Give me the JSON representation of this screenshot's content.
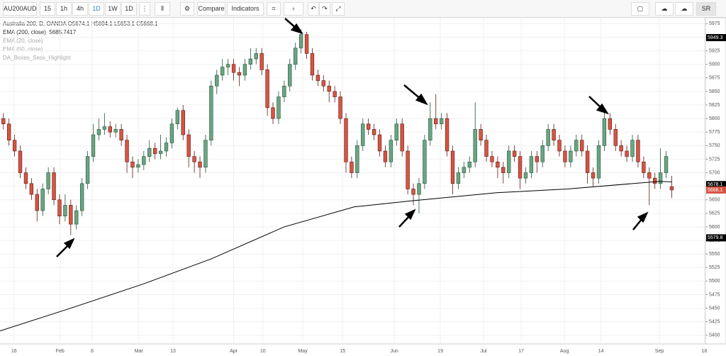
{
  "toolbar": {
    "symbol": "AU200AUD",
    "intervals": [
      "15",
      "1h",
      "4h",
      "1D",
      "1W",
      "1D"
    ],
    "compare": "Compare",
    "indicators": "Indicators",
    "user": "SR"
  },
  "legend": {
    "title": "Australia 200, D, OANDA",
    "ohlc": [
      "O5674.1",
      "H5694.1",
      "L5653.1",
      "C5668.1"
    ],
    "studies": [
      {
        "name": "EMA (200, close)",
        "value": "5685.7417"
      },
      {
        "name": "EMA (20, close)"
      },
      {
        "name": "EMA (50, close)"
      },
      {
        "name": "DA_Boxes_Sess_Highlight"
      }
    ]
  },
  "chart_data": {
    "type": "candlestick",
    "up_color": "#6ba583",
    "down_color": "#d75442",
    "xlim": [
      -0.6,
      125
    ],
    "ylim": [
      5384,
      5986
    ],
    "yticks": [
      5400,
      5425,
      5450,
      5475,
      5500,
      5525,
      5550,
      5575,
      5600,
      5625,
      5650,
      5675,
      5700,
      5725,
      5750,
      5775,
      5800,
      5825,
      5850,
      5875,
      5900,
      5925,
      5950,
      5975
    ],
    "xticks": [
      {
        "value": 1.9,
        "label": "16"
      },
      {
        "value": 10.1,
        "label": "Feb"
      },
      {
        "value": 15.8,
        "label": "6"
      },
      {
        "value": 24.1,
        "label": "Mar"
      },
      {
        "value": 30.2,
        "label": "13"
      },
      {
        "value": 41.0,
        "label": "Apr"
      },
      {
        "value": 46.2,
        "label": "10"
      },
      {
        "value": 53.3,
        "label": "May"
      },
      {
        "value": 60.4,
        "label": "15"
      },
      {
        "value": 69.6,
        "label": "Jun"
      },
      {
        "value": 77.8,
        "label": "19"
      },
      {
        "value": 85.5,
        "label": "Jul"
      },
      {
        "value": 92.2,
        "label": "17"
      },
      {
        "value": 99.9,
        "label": "Aug"
      },
      {
        "value": 106.4,
        "label": "14"
      },
      {
        "value": 116.8,
        "label": "Sep"
      },
      {
        "value": 124.8,
        "label": "18"
      }
    ],
    "open": [
      5800,
      5790,
      5760,
      5740,
      5700,
      5680,
      5660,
      5630,
      5670,
      5700,
      5650,
      5620,
      5640,
      5605,
      5630,
      5680,
      5730,
      5770,
      5780,
      5785,
      5775,
      5780,
      5760,
      5720,
      5710,
      5715,
      5730,
      5745,
      5735,
      5740,
      5755,
      5790,
      5815,
      5770,
      5730,
      5720,
      5710,
      5760,
      5860,
      5880,
      5895,
      5900,
      5885,
      5880,
      5900,
      5910,
      5920,
      5890,
      5820,
      5800,
      5840,
      5860,
      5900,
      5930,
      5955,
      5920,
      5880,
      5870,
      5860,
      5850,
      5840,
      5800,
      5720,
      5700,
      5750,
      5790,
      5780,
      5770,
      5740,
      5720,
      5760,
      5790,
      5740,
      5670,
      5660,
      5680,
      5760,
      5800,
      5790,
      5800,
      5740,
      5680,
      5700,
      5710,
      5720,
      5780,
      5760,
      5730,
      5720,
      5710,
      5700,
      5740,
      5730,
      5690,
      5700,
      5730,
      5720,
      5750,
      5780,
      5760,
      5740,
      5720,
      5740,
      5760,
      5740,
      5700,
      5690,
      5750,
      5800,
      5780,
      5750,
      5740,
      5730,
      5760,
      5720,
      5700,
      5690,
      5680,
      5700,
      5674.1
    ],
    "high": [
      5810,
      5800,
      5770,
      5750,
      5710,
      5690,
      5670,
      5680,
      5710,
      5710,
      5660,
      5660,
      5650,
      5640,
      5690,
      5740,
      5790,
      5800,
      5810,
      5795,
      5790,
      5790,
      5770,
      5730,
      5725,
      5740,
      5760,
      5755,
      5770,
      5765,
      5800,
      5820,
      5825,
      5780,
      5740,
      5730,
      5770,
      5870,
      5890,
      5910,
      5910,
      5910,
      5895,
      5910,
      5930,
      5930,
      5930,
      5900,
      5830,
      5850,
      5870,
      5910,
      5940,
      5965,
      5960,
      5930,
      5890,
      5880,
      5870,
      5860,
      5850,
      5810,
      5730,
      5760,
      5800,
      5800,
      5790,
      5780,
      5750,
      5770,
      5800,
      5800,
      5750,
      5680,
      5690,
      5770,
      5830,
      5845,
      5810,
      5810,
      5750,
      5710,
      5720,
      5730,
      5830,
      5790,
      5770,
      5740,
      5730,
      5720,
      5750,
      5750,
      5740,
      5710,
      5740,
      5740,
      5760,
      5790,
      5790,
      5770,
      5750,
      5750,
      5770,
      5770,
      5750,
      5710,
      5760,
      5815,
      5810,
      5790,
      5760,
      5750,
      5770,
      5770,
      5730,
      5710,
      5700,
      5745,
      5740,
      5694.1
    ],
    "low": [
      5780,
      5750,
      5730,
      5690,
      5670,
      5650,
      5610,
      5620,
      5660,
      5640,
      5605,
      5610,
      5585,
      5595,
      5620,
      5670,
      5720,
      5760,
      5770,
      5765,
      5765,
      5750,
      5700,
      5690,
      5700,
      5705,
      5720,
      5725,
      5725,
      5730,
      5745,
      5780,
      5760,
      5710,
      5700,
      5690,
      5700,
      5750,
      5845,
      5870,
      5880,
      5870,
      5860,
      5870,
      5890,
      5900,
      5880,
      5805,
      5790,
      5790,
      5830,
      5850,
      5890,
      5920,
      5910,
      5870,
      5860,
      5850,
      5830,
      5830,
      5790,
      5700,
      5690,
      5690,
      5740,
      5770,
      5760,
      5730,
      5710,
      5710,
      5750,
      5730,
      5660,
      5640,
      5625,
      5670,
      5750,
      5780,
      5780,
      5730,
      5660,
      5670,
      5690,
      5700,
      5710,
      5750,
      5720,
      5710,
      5690,
      5680,
      5690,
      5720,
      5670,
      5680,
      5690,
      5700,
      5710,
      5740,
      5750,
      5730,
      5710,
      5710,
      5730,
      5730,
      5680,
      5675,
      5680,
      5740,
      5770,
      5740,
      5730,
      5720,
      5720,
      5710,
      5690,
      5640,
      5670,
      5670,
      5690,
      5653.1
    ],
    "close": [
      5790,
      5760,
      5740,
      5700,
      5680,
      5660,
      5630,
      5670,
      5700,
      5650,
      5620,
      5640,
      5605,
      5630,
      5680,
      5730,
      5770,
      5780,
      5785,
      5775,
      5780,
      5760,
      5720,
      5710,
      5715,
      5730,
      5745,
      5735,
      5740,
      5755,
      5790,
      5815,
      5770,
      5730,
      5720,
      5710,
      5760,
      5860,
      5880,
      5895,
      5900,
      5885,
      5880,
      5900,
      5910,
      5920,
      5890,
      5820,
      5800,
      5840,
      5860,
      5900,
      5930,
      5955,
      5920,
      5880,
      5870,
      5860,
      5850,
      5840,
      5800,
      5720,
      5700,
      5750,
      5790,
      5780,
      5770,
      5740,
      5720,
      5760,
      5790,
      5740,
      5670,
      5660,
      5680,
      5760,
      5800,
      5790,
      5800,
      5740,
      5680,
      5700,
      5710,
      5720,
      5780,
      5760,
      5730,
      5720,
      5710,
      5700,
      5740,
      5730,
      5690,
      5700,
      5730,
      5720,
      5750,
      5780,
      5760,
      5740,
      5720,
      5740,
      5760,
      5740,
      5700,
      5690,
      5750,
      5800,
      5780,
      5750,
      5740,
      5730,
      5760,
      5720,
      5700,
      5690,
      5680,
      5700,
      5730,
      5668.1
    ],
    "overlays": [
      {
        "color": "#000000",
        "x": [
          -0.6,
          12,
          25,
          37,
          50,
          62.5,
          72.6,
          87.8,
          100.4,
          116.8,
          119
        ],
        "values": [
          5408,
          5450,
          5495,
          5541,
          5600,
          5637,
          5648,
          5663,
          5670,
          5684,
          5683
        ]
      }
    ],
    "price_markers": [
      {
        "value": 5949.3,
        "color": "#000000"
      },
      {
        "value": 5579.8,
        "color": "#000000"
      },
      {
        "value": 5678.1,
        "color": "#000000"
      },
      {
        "value": 5668.1,
        "color": "#d75442"
      }
    ]
  }
}
